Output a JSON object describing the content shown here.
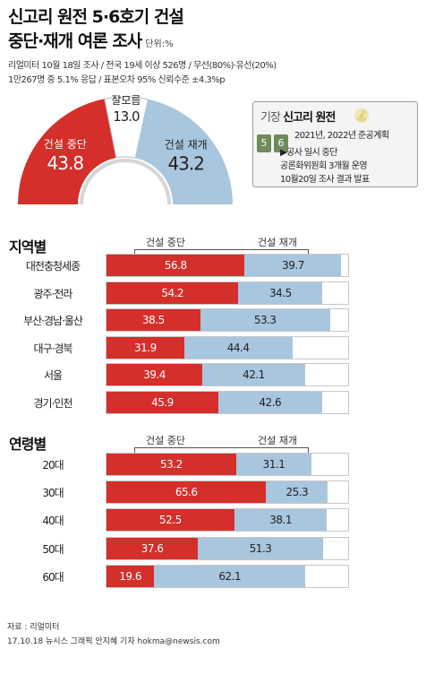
{
  "header": {
    "title_line1": "신고리 원전 5·6호기 건설",
    "title_line2": "중단·재개 여론 조사",
    "unit": "단위:%",
    "meta_line1": "리얼미터 10월 18일 조사 / 전국 19세 이상 526명 / 무선(80%)·유선(20%)",
    "meta_line2": "1만267명 중 5.1% 응답 / 표본오차 95% 신뢰수준 ±4.3%p"
  },
  "colors": {
    "stop": "#d42f2a",
    "resume": "#a9c6df",
    "unsure": "#ffffff"
  },
  "gauge": {
    "items": [
      {
        "label": "건설 중단",
        "value": "43.8"
      },
      {
        "label": "잘모름",
        "value": "13.0"
      },
      {
        "label": "건설 재개",
        "value": "43.2"
      }
    ]
  },
  "info_box": {
    "title_prefix": "기장",
    "title_main": "신고리 원전",
    "unit_icons": [
      "5",
      "6"
    ],
    "lines": [
      "2021년, 2022년 준공계획",
      "▶공사 일시 중단",
      "공론화위원회 3개월 운영",
      "10월20일 조사 결과 발표"
    ]
  },
  "chart_data": [
    {
      "type": "bar",
      "stacked": true,
      "title": "지역별",
      "categories": [
        "대전충청세종",
        "광주·전라",
        "부산·경남·울산",
        "대구·경북",
        "서울",
        "경기·인천"
      ],
      "series": [
        {
          "name": "건설 중단",
          "values": [
            56.8,
            54.2,
            38.5,
            31.9,
            39.4,
            45.9
          ]
        },
        {
          "name": "건설 재개",
          "values": [
            39.7,
            34.5,
            53.3,
            44.4,
            42.1,
            42.6
          ]
        }
      ],
      "xlim": [
        0,
        100
      ]
    },
    {
      "type": "bar",
      "stacked": true,
      "title": "연령별",
      "categories": [
        "20대",
        "30대",
        "40대",
        "50대",
        "60대"
      ],
      "series": [
        {
          "name": "건설 중단",
          "values": [
            53.2,
            65.6,
            52.5,
            37.6,
            19.6
          ]
        },
        {
          "name": "건설 재개",
          "values": [
            31.1,
            25.3,
            38.1,
            51.3,
            62.1
          ]
        }
      ],
      "xlim": [
        0,
        100
      ]
    }
  ],
  "footer": {
    "source": "자료 : 리얼미터",
    "credit": "17.10.18 뉴시스 그래픽 안지혜 기자 hokma@newsis.com"
  }
}
